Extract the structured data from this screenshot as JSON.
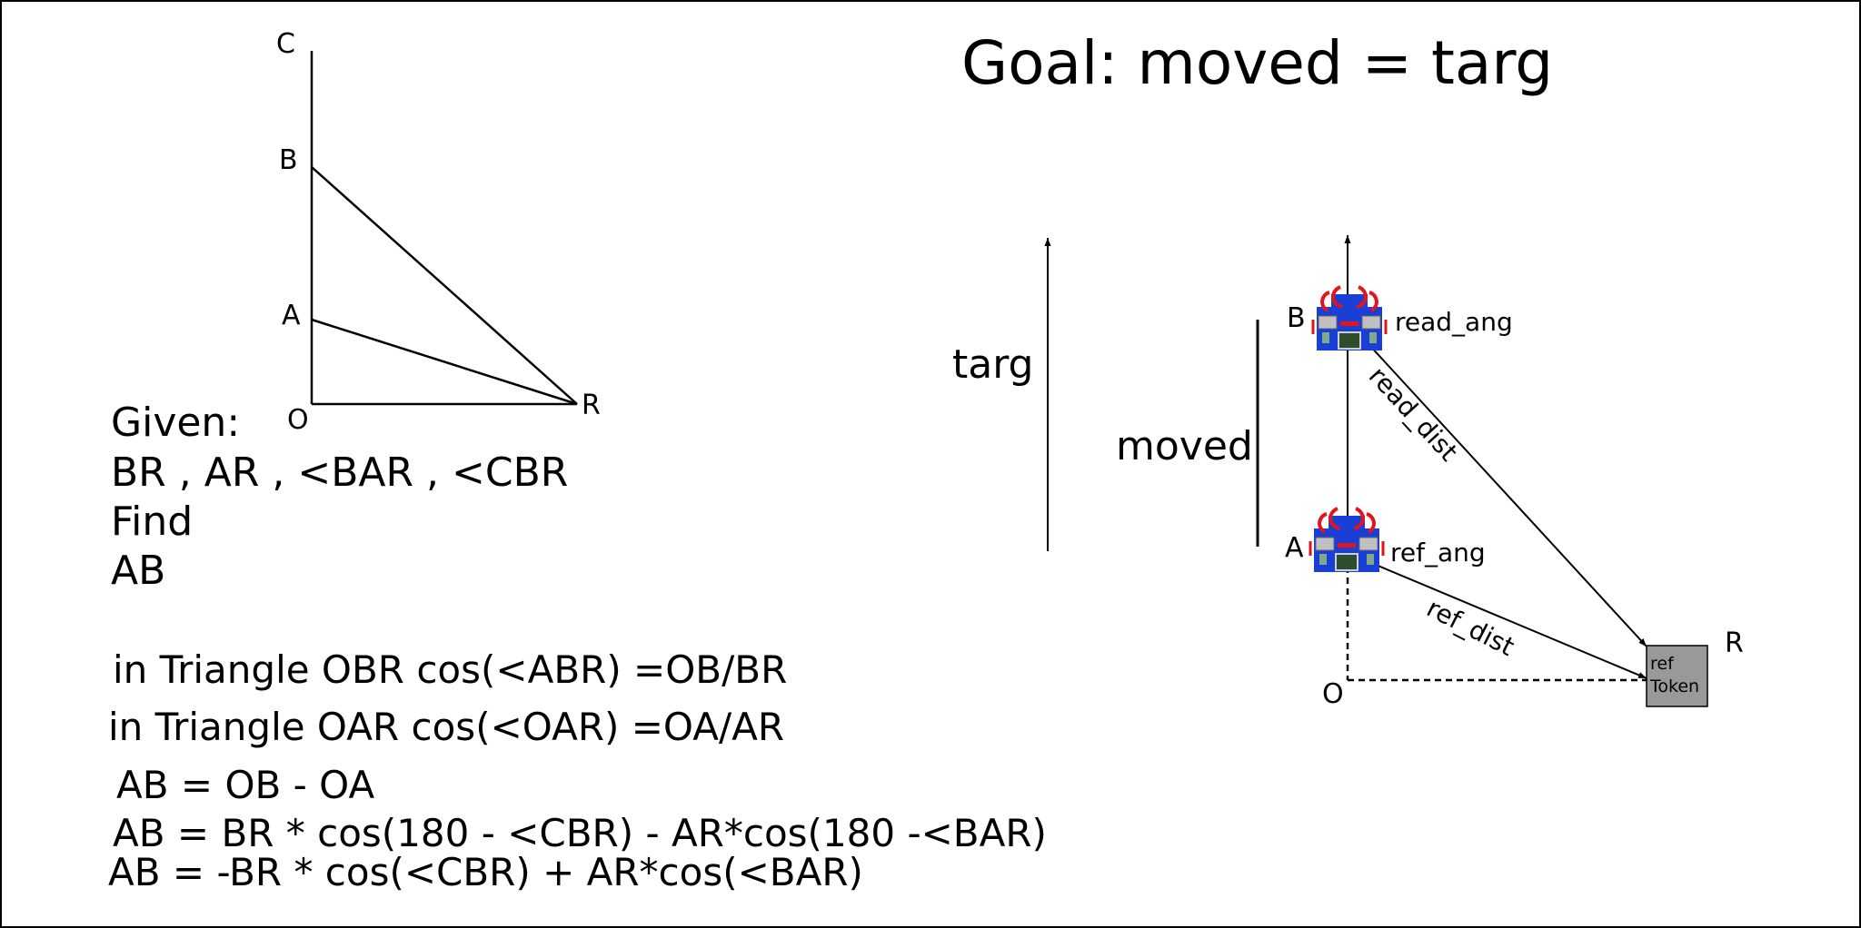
{
  "title": "Goal: moved = targ",
  "triangle": {
    "labels": {
      "C": "C",
      "B": "B",
      "A": "A",
      "O": "O",
      "R": "R"
    }
  },
  "problem": {
    "given_heading": "Given:",
    "given_values": "BR , AR , <BAR , <CBR",
    "find_heading": "Find",
    "find_value": "AB"
  },
  "equations": [
    "in Triangle OBR cos(<ABR) =OB/BR",
    "in Triangle OAR cos(<OAR) =OA/AR",
    "AB = OB - OA",
    "AB = BR * cos(180 - <CBR) - AR*cos(180 -<BAR)",
    "AB = -BR * cos(<CBR) + AR*cos(<BAR)"
  ],
  "right_diagram": {
    "targ_label": "targ",
    "moved_label": "moved",
    "point_B": "B",
    "point_A": "A",
    "point_O": "O",
    "point_R": "R",
    "read_ang": "read_ang",
    "ref_ang": "ref_ang",
    "read_dist": "read_dist",
    "ref_dist": "ref_dist",
    "token_line1": "ref",
    "token_line2": "Token",
    "colors": {
      "robot_body": "#1a3fd6",
      "robot_claw": "#e0161b",
      "token_fill": "#999999"
    }
  }
}
